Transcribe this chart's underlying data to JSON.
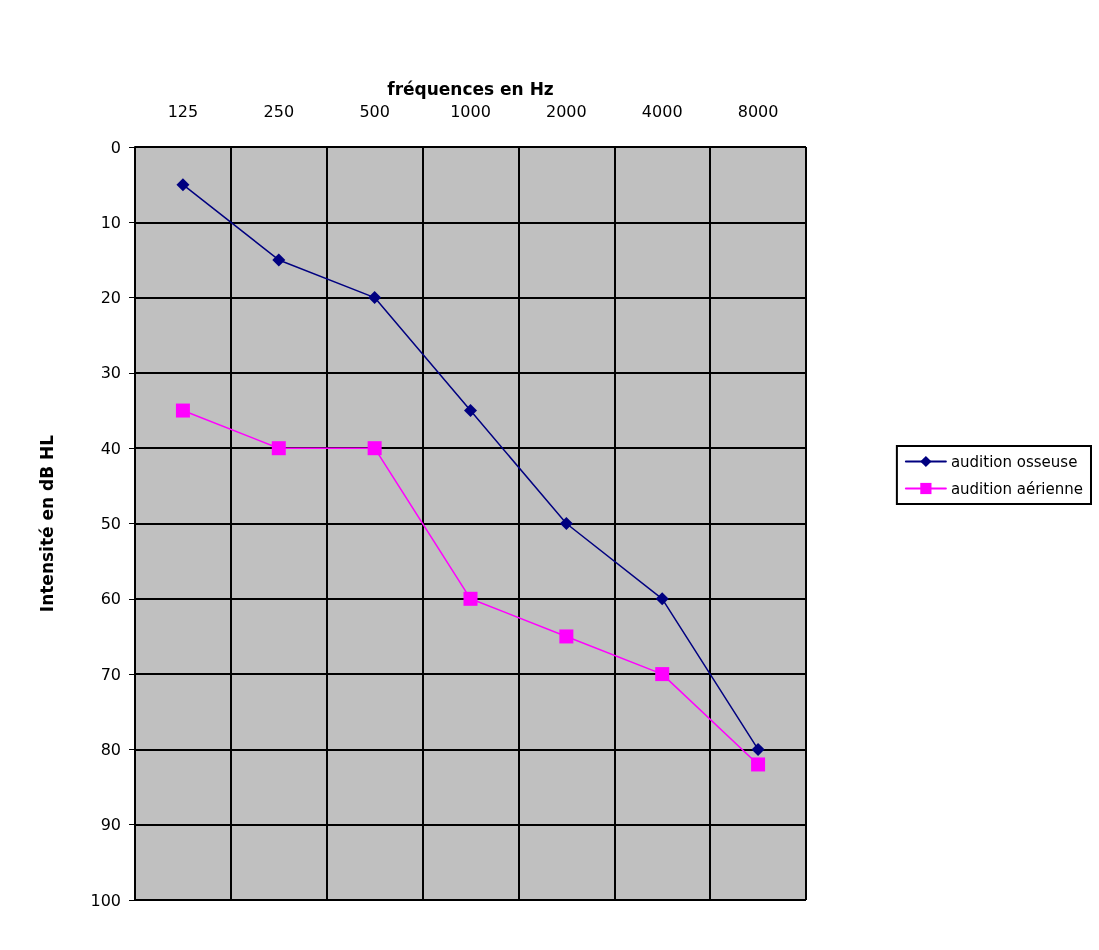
{
  "chart_data": {
    "type": "line",
    "xlabel": "fréquences en Hz",
    "ylabel": "Intensité en dB HL",
    "categories": [
      "125",
      "250",
      "500",
      "1000",
      "2000",
      "4000",
      "8000"
    ],
    "series": [
      {
        "name": "audition osseuse",
        "color": "#000080",
        "marker": "diamond",
        "values": [
          5,
          15,
          20,
          35,
          50,
          60,
          80
        ]
      },
      {
        "name": "audition aérienne",
        "color": "#ff00ff",
        "marker": "square",
        "values": [
          35,
          40,
          40,
          60,
          65,
          70,
          82
        ]
      }
    ],
    "ylim": [
      100,
      0
    ],
    "yticks": [
      0,
      10,
      20,
      30,
      40,
      50,
      60,
      70,
      80,
      90,
      100
    ],
    "grid": true,
    "legend": "right"
  }
}
